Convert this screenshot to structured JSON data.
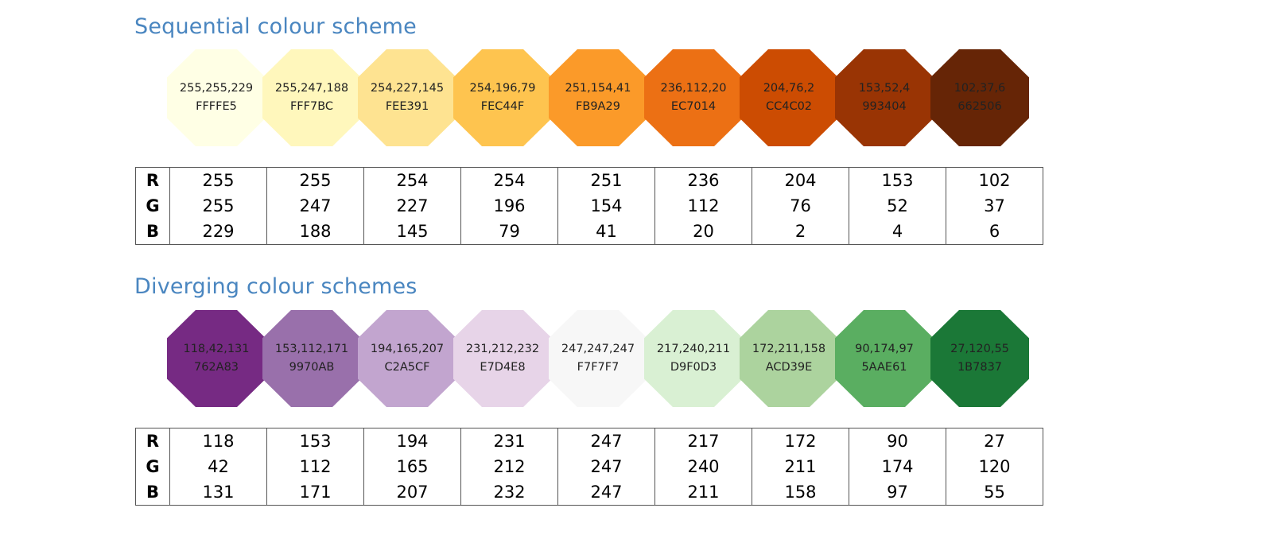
{
  "sequential": {
    "title": "Sequential colour scheme",
    "row_labels": [
      "R",
      "G",
      "B"
    ],
    "swatches": [
      {
        "rgb": "255,255,229",
        "hex": "FFFFE5",
        "r": 255,
        "g": 255,
        "b": 229,
        "color": "#FFFFE5"
      },
      {
        "rgb": "255,247,188",
        "hex": "FFF7BC",
        "r": 255,
        "g": 247,
        "b": 188,
        "color": "#FFF7BC"
      },
      {
        "rgb": "254,227,145",
        "hex": "FEE391",
        "r": 254,
        "g": 227,
        "b": 145,
        "color": "#FEE391"
      },
      {
        "rgb": "254,196,79",
        "hex": "FEC44F",
        "r": 254,
        "g": 196,
        "b": 79,
        "color": "#FEC44F"
      },
      {
        "rgb": "251,154,41",
        "hex": "FB9A29",
        "r": 251,
        "g": 154,
        "b": 41,
        "color": "#FB9A29"
      },
      {
        "rgb": "236,112,20",
        "hex": "EC7014",
        "r": 236,
        "g": 112,
        "b": 20,
        "color": "#EC7014"
      },
      {
        "rgb": "204,76,2",
        "hex": "CC4C02",
        "r": 204,
        "g": 76,
        "b": 2,
        "color": "#CC4C02"
      },
      {
        "rgb": "153,52,4",
        "hex": "993404",
        "r": 153,
        "g": 52,
        "b": 4,
        "color": "#993404"
      },
      {
        "rgb": "102,37,6",
        "hex": "662506",
        "r": 102,
        "g": 37,
        "b": 6,
        "color": "#662506"
      }
    ]
  },
  "diverging": {
    "title": "Diverging colour schemes",
    "row_labels": [
      "R",
      "G",
      "B"
    ],
    "swatches": [
      {
        "rgb": "118,42,131",
        "hex": "762A83",
        "r": 118,
        "g": 42,
        "b": 131,
        "color": "#762A83"
      },
      {
        "rgb": "153,112,171",
        "hex": "9970AB",
        "r": 153,
        "g": 112,
        "b": 171,
        "color": "#9970AB"
      },
      {
        "rgb": "194,165,207",
        "hex": "C2A5CF",
        "r": 194,
        "g": 165,
        "b": 207,
        "color": "#C2A5CF"
      },
      {
        "rgb": "231,212,232",
        "hex": "E7D4E8",
        "r": 231,
        "g": 212,
        "b": 232,
        "color": "#E7D4E8"
      },
      {
        "rgb": "247,247,247",
        "hex": "F7F7F7",
        "r": 247,
        "g": 247,
        "b": 247,
        "color": "#F7F7F7"
      },
      {
        "rgb": "217,240,211",
        "hex": "D9F0D3",
        "r": 217,
        "g": 240,
        "b": 211,
        "color": "#D9F0D3"
      },
      {
        "rgb": "172,211,158",
        "hex": "ACD39E",
        "r": 172,
        "g": 211,
        "b": 158,
        "color": "#ACD39E"
      },
      {
        "rgb": "90,174,97",
        "hex": "5AAE61",
        "r": 90,
        "g": 174,
        "b": 97,
        "color": "#5AAE61"
      },
      {
        "rgb": "27,120,55",
        "hex": "1B7837",
        "r": 27,
        "g": 120,
        "b": 55,
        "color": "#1B7837"
      }
    ]
  }
}
